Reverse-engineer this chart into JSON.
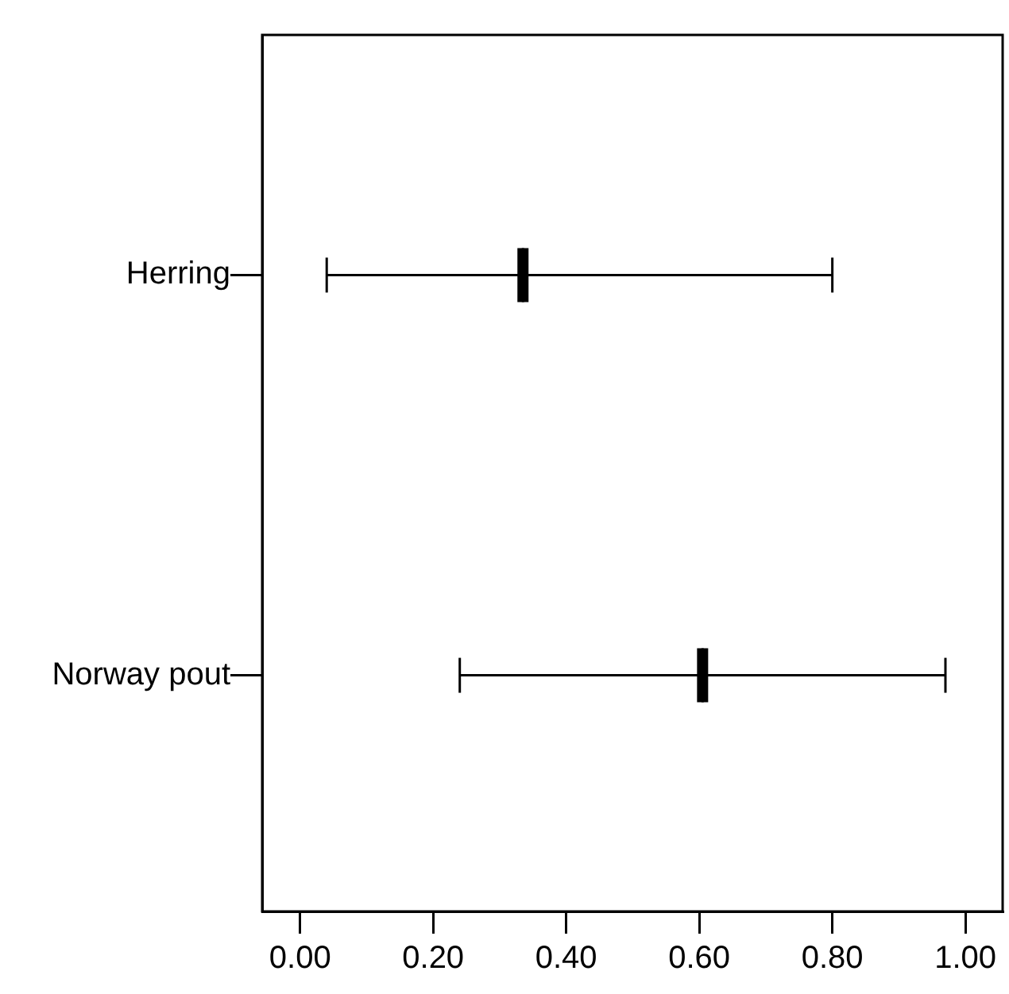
{
  "chart_data": {
    "type": "box",
    "orientation": "horizontal",
    "categories": [
      "Herring",
      "Norway pout"
    ],
    "boxes": [
      {
        "low": 0.04,
        "q1": 0.335,
        "median": 0.335,
        "q3": 0.335,
        "high": 0.8
      },
      {
        "low": 0.24,
        "q1": 0.605,
        "median": 0.605,
        "q3": 0.605,
        "high": 0.97
      }
    ],
    "color": "#000000",
    "xlim": [
      -0.057,
      1.056
    ],
    "xticks": [
      {
        "value": 0,
        "label": "0.00"
      },
      {
        "value": 0.2,
        "label": "0.20"
      },
      {
        "value": 0.4,
        "label": "0.40"
      },
      {
        "value": 0.6,
        "label": "0.60"
      },
      {
        "value": 0.8,
        "label": "0.80"
      },
      {
        "value": 1,
        "label": "1.00"
      }
    ],
    "grid": false,
    "legend": false
  }
}
